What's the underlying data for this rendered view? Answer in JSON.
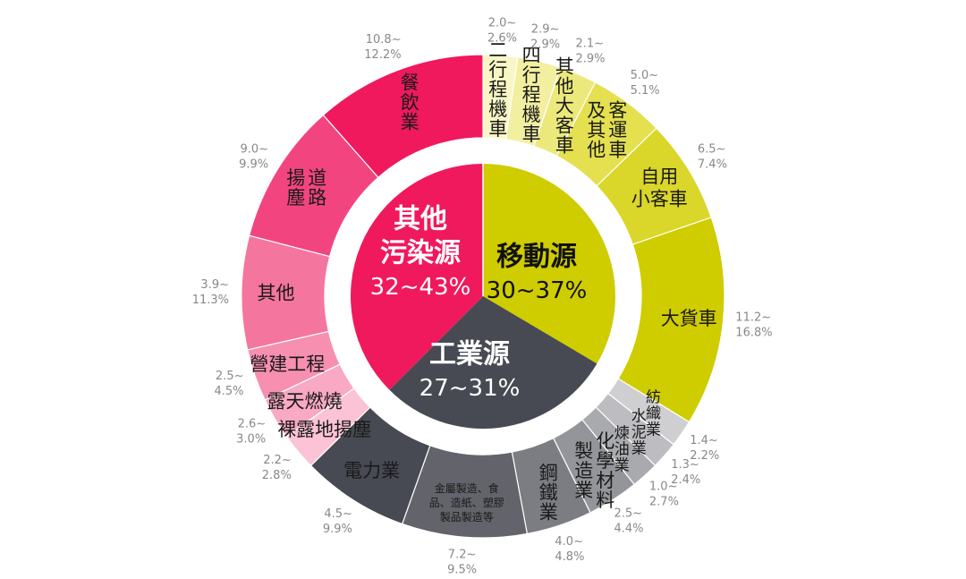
{
  "chart_data": {
    "type": "pie",
    "inner": [
      {
        "name": "移動源",
        "range": "30~37%",
        "value": 33.5,
        "color": "#cfcc00",
        "text_color": "#111111"
      },
      {
        "name": "工業源",
        "range": "27~31%",
        "value": 29,
        "color": "#474a52",
        "text_color": "#ffffff"
      },
      {
        "name": "其他\n污染源",
        "range": "32~43%",
        "value": 37.5,
        "color": "#f0195e",
        "text_color": "#ffffff"
      }
    ],
    "outer": [
      {
        "name": "二行程機車",
        "range": "2.0~\n2.6%",
        "value": 2.3,
        "group": "mobile",
        "color": "#f8f6c4",
        "vertical": true
      },
      {
        "name": "四行程機車",
        "range": "2.9~\n2.9%",
        "value": 2.9,
        "group": "mobile",
        "color": "#f2efa0",
        "vertical": true
      },
      {
        "name": "其他大客車",
        "range": "2.1~\n2.9%",
        "value": 2.5,
        "group": "mobile",
        "color": "#ece97c",
        "vertical": true
      },
      {
        "name": "客運車\n及其他",
        "range": "5.0~\n5.1%",
        "value": 5.05,
        "group": "mobile",
        "color": "#e4e050",
        "vertical": true
      },
      {
        "name": "自用\n小客車",
        "range": "6.5~\n7.4%",
        "value": 6.95,
        "group": "mobile",
        "color": "#dad62a",
        "vertical": false
      },
      {
        "name": "大貨車",
        "range": "11.2~\n16.8%",
        "value": 14,
        "group": "mobile",
        "color": "#cfcc00",
        "vertical": false
      },
      {
        "name": "紡織業",
        "range": "1.4~\n2.2%",
        "value": 1.8,
        "group": "industry",
        "color": "#cfcfd2",
        "vertical": true
      },
      {
        "name": "水泥業",
        "range": "1.3~\n2.4%",
        "value": 1.85,
        "group": "industry",
        "color": "#bdbdc1",
        "vertical": true
      },
      {
        "name": "煉油業",
        "range": "1.0~\n2.7%",
        "value": 1.85,
        "group": "industry",
        "color": "#a9aaae",
        "vertical": true
      },
      {
        "name": "化學材料\n製造業",
        "range": "2.5~\n4.4%",
        "value": 3.45,
        "group": "industry",
        "color": "#94959a",
        "vertical": true
      },
      {
        "name": "鋼鐵業",
        "range": "4.0~\n4.8%",
        "value": 4.4,
        "group": "industry",
        "color": "#7c7d83",
        "vertical": true
      },
      {
        "name": "金屬製造、食\n品、造紙、塑膠\n製品製造等",
        "range": "7.2~\n9.5%",
        "value": 8.35,
        "group": "industry",
        "color": "#63646b",
        "vertical": false
      },
      {
        "name": "電力業",
        "range": "4.5~\n9.9%",
        "value": 7.2,
        "group": "industry",
        "color": "#474a52",
        "vertical": false
      },
      {
        "name": "裸露地揚塵",
        "range": "2.2~\n2.8%",
        "value": 2.5,
        "group": "other",
        "color": "#fcc2d5",
        "vertical": false
      },
      {
        "name": "露天燃燒",
        "range": "2.6~\n3.0%",
        "value": 2.8,
        "group": "other",
        "color": "#f9a9c3",
        "vertical": false
      },
      {
        "name": "營建工程",
        "range": "2.5~\n4.5%",
        "value": 3.5,
        "group": "other",
        "color": "#f78fb1",
        "vertical": false
      },
      {
        "name": "其他",
        "range": "3.9~\n11.3%",
        "value": 7.6,
        "group": "other",
        "color": "#f4759e",
        "vertical": false
      },
      {
        "name": "道路\n揚塵",
        "range": "9.0~\n9.9%",
        "value": 9.45,
        "group": "other",
        "color": "#f2457f",
        "vertical": true
      },
      {
        "name": "餐飲業",
        "range": "10.8~\n12.2%",
        "value": 11.5,
        "group": "other",
        "color": "#f0195e",
        "vertical": true
      }
    ]
  }
}
